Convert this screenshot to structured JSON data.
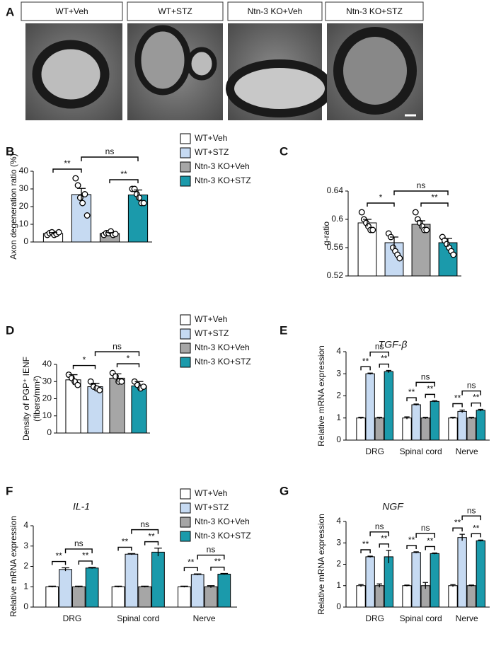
{
  "panel_a": {
    "letter": "A",
    "labels": [
      "WT+Veh",
      "WT+STZ",
      "Ntn-3 KO+Veh",
      "Ntn-3 KO+STZ"
    ]
  },
  "chart_data": [
    {
      "panel": "B",
      "type": "bar",
      "ylabel": [
        "Axon degeneration ratio (%)"
      ],
      "ylim": [
        0,
        40
      ],
      "yticks": [
        0,
        10,
        20,
        30,
        40
      ],
      "legend": "right",
      "series": [
        {
          "name": "WT+Veh",
          "color": "#ffffff",
          "values": [
            4.8
          ],
          "errors": [
            0.5
          ],
          "points": [
            [
              4,
              5,
              5.5,
              4,
              4.5,
              5.5
            ]
          ]
        },
        {
          "name": "WT+STZ",
          "color": "#c6daf2",
          "values": [
            26.8
          ],
          "errors": [
            3.5
          ],
          "points": [
            [
              36,
              32,
              25,
              22,
              27,
              15
            ]
          ]
        },
        {
          "name": "Ntn-3 KO+Veh",
          "color": "#a6a6a6",
          "values": [
            4.8
          ],
          "errors": [
            0.5
          ],
          "points": [
            [
              4,
              5,
              5,
              6,
              4,
              4.5
            ]
          ]
        },
        {
          "name": "Ntn-3 KO+STZ",
          "color": "#1b9aab",
          "values": [
            26.6
          ],
          "errors": [
            2.8
          ],
          "points": [
            [
              30,
              30,
              27,
              25,
              22,
              22
            ]
          ]
        }
      ],
      "annotations": [
        "**",
        "ns",
        "**"
      ]
    },
    {
      "panel": "C",
      "type": "bar",
      "ylabel": [
        "g-ratio"
      ],
      "ylim": [
        0.52,
        0.64
      ],
      "yticks": [
        0.52,
        0.56,
        0.6,
        0.64
      ],
      "series": [
        {
          "color": "#ffffff",
          "values": [
            0.595
          ],
          "errors": [
            0.005
          ],
          "points": [
            [
              0.61,
              0.6,
              0.595,
              0.59,
              0.585,
              0.585
            ]
          ]
        },
        {
          "color": "#c6daf2",
          "values": [
            0.567
          ],
          "errors": [
            0.008
          ],
          "points": [
            [
              0.58,
              0.575,
              0.56,
              0.555,
              0.55,
              0.545
            ]
          ]
        },
        {
          "color": "#a6a6a6",
          "values": [
            0.593
          ],
          "errors": [
            0.005
          ],
          "points": [
            [
              0.61,
              0.6,
              0.595,
              0.59,
              0.585,
              0.585
            ]
          ]
        },
        {
          "color": "#1b9aab",
          "values": [
            0.567
          ],
          "errors": [
            0.006
          ],
          "points": [
            [
              0.575,
              0.57,
              0.565,
              0.56,
              0.555,
              0.55
            ]
          ]
        }
      ],
      "annotations": [
        "*",
        "ns",
        "**"
      ]
    },
    {
      "panel": "D",
      "type": "bar",
      "ylabel": [
        "Density of PGP⁺ IENF",
        "(fibers/mm²)"
      ],
      "ylim": [
        0,
        40
      ],
      "yticks": [
        0,
        10,
        20,
        30,
        40
      ],
      "legend": "right",
      "series": [
        {
          "name": "WT+Veh",
          "color": "#ffffff",
          "values": [
            31
          ],
          "errors": [
            3
          ],
          "points": [
            [
              34,
              32,
              30,
              28
            ]
          ]
        },
        {
          "name": "WT+STZ",
          "color": "#c6daf2",
          "values": [
            27
          ],
          "errors": [
            2
          ],
          "points": [
            [
              30,
              27,
              26,
              25
            ]
          ]
        },
        {
          "name": "Ntn-3 KO+Veh",
          "color": "#a6a6a6",
          "values": [
            32
          ],
          "errors": [
            2.5
          ],
          "points": [
            [
              35,
              33,
              30,
              30
            ]
          ]
        },
        {
          "name": "Ntn-3 KO+STZ",
          "color": "#1b9aab",
          "values": [
            27.5
          ],
          "errors": [
            2.5
          ],
          "points": [
            [
              30,
              28,
              26,
              27
            ]
          ]
        }
      ],
      "annotations": [
        "*",
        "ns",
        "*"
      ]
    },
    {
      "panel": "E",
      "type": "grouped-bar",
      "title": "TGF-β",
      "ylabel": [
        "Relative mRNA expression"
      ],
      "ylim": [
        0,
        4
      ],
      "yticks": [
        0,
        1,
        2,
        3,
        4
      ],
      "categories": [
        "DRG",
        "Spinal cord",
        "Nerve"
      ],
      "series": [
        {
          "color": "#ffffff",
          "values": [
            1,
            1,
            1
          ],
          "errors": [
            0.03,
            0.05,
            0.03
          ]
        },
        {
          "color": "#c6daf2",
          "values": [
            3.0,
            1.6,
            1.3
          ],
          "errors": [
            0.03,
            0.03,
            0.06
          ]
        },
        {
          "color": "#a6a6a6",
          "values": [
            1,
            1,
            1
          ],
          "errors": [
            0.03,
            0.03,
            0.03
          ]
        },
        {
          "color": "#1b9aab",
          "values": [
            3.1,
            1.75,
            1.35
          ],
          "errors": [
            0.05,
            0.03,
            0.04
          ]
        }
      ],
      "annotations": [
        [
          "**",
          "ns",
          "**"
        ],
        [
          "**",
          "ns",
          "**"
        ],
        [
          "**",
          "ns",
          "**"
        ]
      ]
    },
    {
      "panel": "F",
      "type": "grouped-bar",
      "title": "IL-1",
      "ylabel": [
        "Relative mRNA expression"
      ],
      "ylim": [
        0,
        4
      ],
      "yticks": [
        0,
        1,
        2,
        3,
        4
      ],
      "legend": "right",
      "categories": [
        "DRG",
        "Spinal cord",
        "Nerve"
      ],
      "series": [
        {
          "name": "WT+Veh",
          "color": "#ffffff",
          "values": [
            1,
            1,
            1
          ],
          "errors": [
            0.03,
            0.03,
            0.03
          ]
        },
        {
          "name": "WT+STZ",
          "color": "#c6daf2",
          "values": [
            1.85,
            2.6,
            1.6
          ],
          "errors": [
            0.08,
            0.03,
            0.03
          ]
        },
        {
          "name": "Ntn-3 KO+Veh",
          "color": "#a6a6a6",
          "values": [
            1,
            1,
            1
          ],
          "errors": [
            0.03,
            0.03,
            0.05
          ]
        },
        {
          "name": "Ntn-3 KO+STZ",
          "color": "#1b9aab",
          "values": [
            1.92,
            2.7,
            1.62
          ],
          "errors": [
            0.03,
            0.2,
            0.03
          ]
        }
      ],
      "annotations": [
        [
          "**",
          "ns",
          "**"
        ],
        [
          "**",
          "ns",
          "**"
        ],
        [
          "**",
          "ns",
          "**"
        ]
      ]
    },
    {
      "panel": "G",
      "type": "grouped-bar",
      "title": "NGF",
      "ylabel": [
        "Relative mRNA expression"
      ],
      "ylim": [
        0,
        4
      ],
      "yticks": [
        0,
        1,
        2,
        3,
        4
      ],
      "categories": [
        "DRG",
        "Spinal cord",
        "Nerve"
      ],
      "series": [
        {
          "color": "#ffffff",
          "values": [
            1,
            1,
            1
          ],
          "errors": [
            0.05,
            0.03,
            0.05
          ]
        },
        {
          "color": "#c6daf2",
          "values": [
            2.35,
            2.55,
            3.25
          ],
          "errors": [
            0.03,
            0.03,
            0.15
          ]
        },
        {
          "color": "#a6a6a6",
          "values": [
            1,
            1,
            1
          ],
          "errors": [
            0.08,
            0.15,
            0.03
          ]
        },
        {
          "color": "#1b9aab",
          "values": [
            2.35,
            2.5,
            3.1
          ],
          "errors": [
            0.3,
            0.03,
            0.03
          ]
        }
      ],
      "annotations": [
        [
          "**",
          "ns",
          "**"
        ],
        [
          "**",
          "ns",
          "**"
        ],
        [
          "**",
          "ns",
          "**"
        ]
      ]
    }
  ]
}
